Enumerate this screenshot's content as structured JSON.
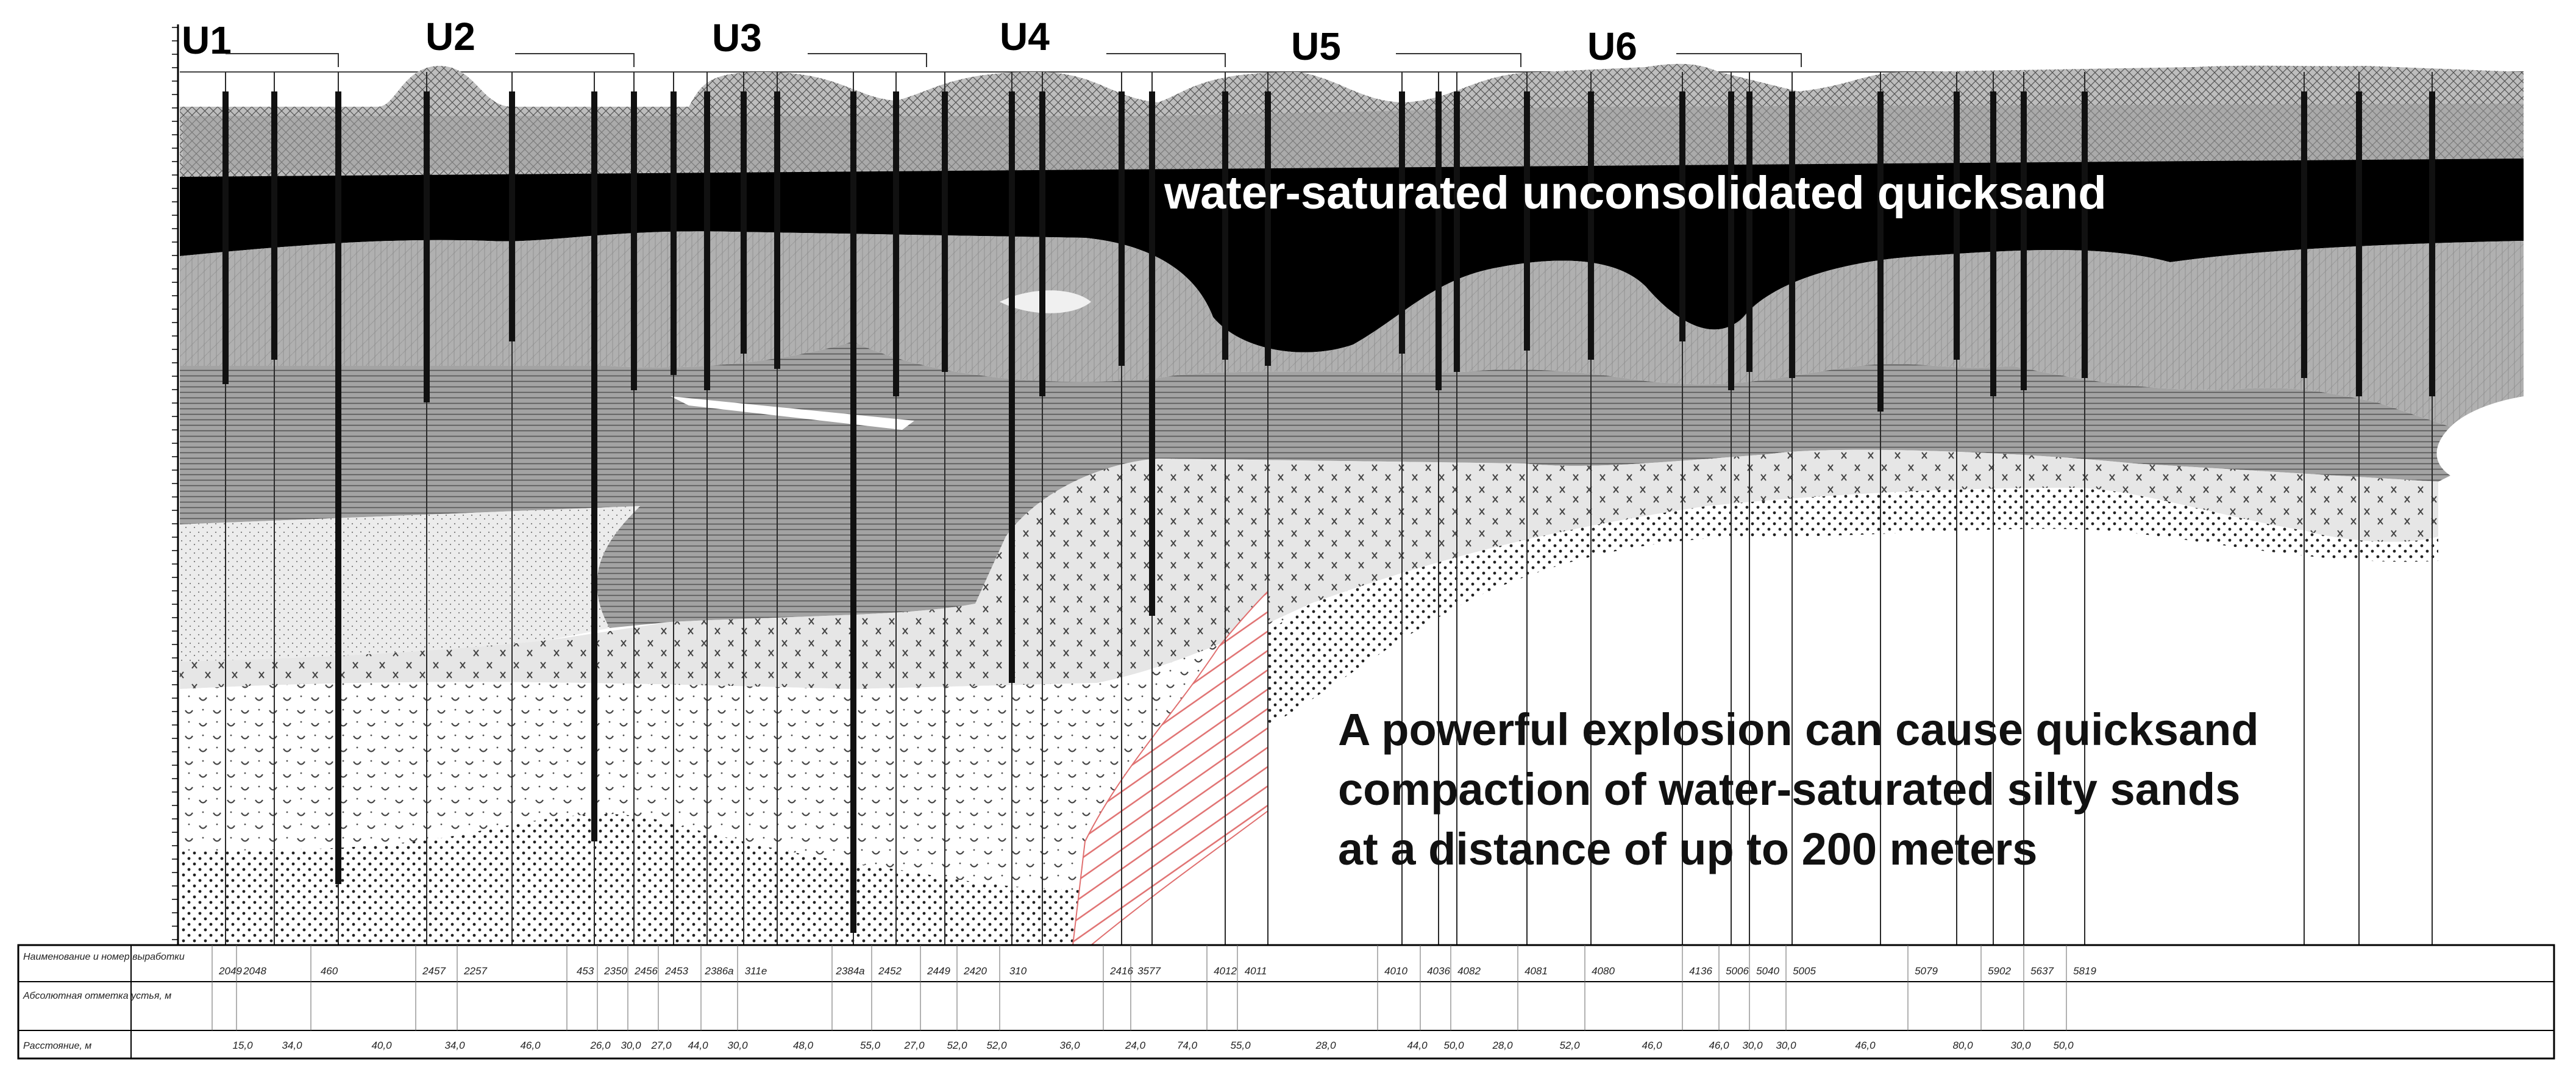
{
  "profile_labels": [
    "U1",
    "U2",
    "U3",
    "U4",
    "U5",
    "U6"
  ],
  "callouts": {
    "quicksand": "water-saturated unconsolidated quicksand",
    "explosion_lines": [
      "A powerful explosion can cause quicksand",
      "compaction of water-saturated silty sands",
      "at a distance of up to 200 meters"
    ]
  },
  "table": {
    "row_headers": [
      "Наименование и номер выработки",
      "Абсолютная отметка устья, м",
      "Расстояние, м"
    ],
    "boreholes": [
      "2049",
      "2048",
      "460",
      "2457",
      "2257",
      "453",
      "2350",
      "2456",
      "2453",
      "2386а",
      "311е",
      "2384а",
      "2452",
      "2449",
      "2420",
      "310",
      "2416",
      "3577",
      "4012",
      "4011",
      "4010",
      "4036",
      "4082",
      "4081",
      "4080",
      "4136",
      "5006",
      "5040",
      "5005",
      "5079",
      "5902",
      "5637",
      "5819"
    ],
    "distances": [
      "15,0",
      "34,0",
      "40,0",
      "34,0",
      "46,0",
      "26,0",
      "30,0",
      "27,0",
      "44,0",
      "30,0",
      "48,0",
      "55,0",
      "27,0",
      "52,0",
      "52,0",
      "36,0",
      "24,0",
      "74,0",
      "55,0",
      "28,0",
      "44,0",
      "50,0",
      "28,0",
      "52,0",
      "46,0",
      "46,0",
      "30,0",
      "30,0",
      "46,0",
      "80,0",
      "30,0",
      "50,0"
    ]
  },
  "colors": {
    "quicksand": "#000000",
    "loam": "#b4b4b4",
    "clay": "#8c8c8c",
    "silty_sand": "#e6e6e6",
    "explosion_hatch": "#e07070"
  }
}
